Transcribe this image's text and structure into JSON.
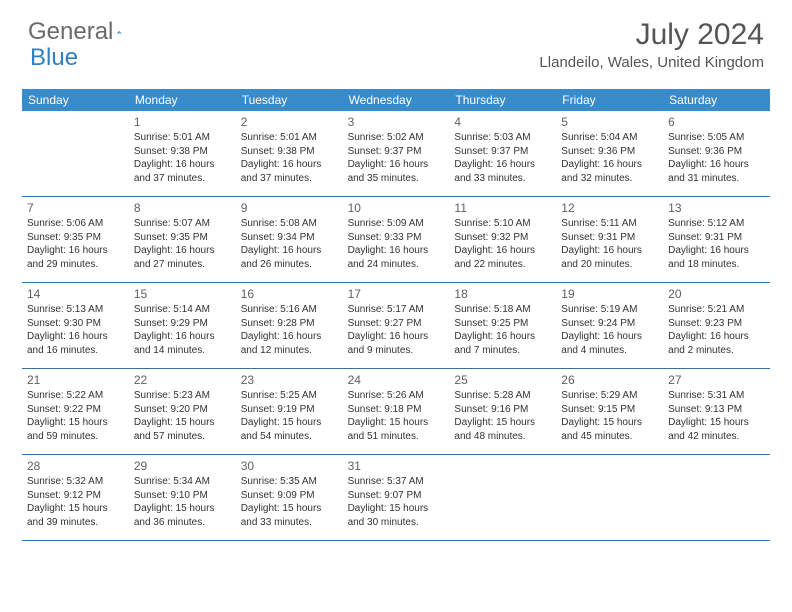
{
  "brand": {
    "part1": "General",
    "part2": "Blue",
    "text_color": "#6a6a6a",
    "accent_color": "#2f7fc1"
  },
  "title": "July 2024",
  "location": "Llandeilo, Wales, United Kingdom",
  "header_bg": "#3a8bc9",
  "header_text": "#ffffff",
  "cell_border": "#3a6fa0",
  "weekdays": [
    "Sunday",
    "Monday",
    "Tuesday",
    "Wednesday",
    "Thursday",
    "Friday",
    "Saturday"
  ],
  "leading_blanks": 1,
  "days": [
    {
      "n": 1,
      "sunrise": "5:01 AM",
      "sunset": "9:38 PM",
      "dh": 16,
      "dm": 37
    },
    {
      "n": 2,
      "sunrise": "5:01 AM",
      "sunset": "9:38 PM",
      "dh": 16,
      "dm": 37
    },
    {
      "n": 3,
      "sunrise": "5:02 AM",
      "sunset": "9:37 PM",
      "dh": 16,
      "dm": 35
    },
    {
      "n": 4,
      "sunrise": "5:03 AM",
      "sunset": "9:37 PM",
      "dh": 16,
      "dm": 33
    },
    {
      "n": 5,
      "sunrise": "5:04 AM",
      "sunset": "9:36 PM",
      "dh": 16,
      "dm": 32
    },
    {
      "n": 6,
      "sunrise": "5:05 AM",
      "sunset": "9:36 PM",
      "dh": 16,
      "dm": 31
    },
    {
      "n": 7,
      "sunrise": "5:06 AM",
      "sunset": "9:35 PM",
      "dh": 16,
      "dm": 29
    },
    {
      "n": 8,
      "sunrise": "5:07 AM",
      "sunset": "9:35 PM",
      "dh": 16,
      "dm": 27
    },
    {
      "n": 9,
      "sunrise": "5:08 AM",
      "sunset": "9:34 PM",
      "dh": 16,
      "dm": 26
    },
    {
      "n": 10,
      "sunrise": "5:09 AM",
      "sunset": "9:33 PM",
      "dh": 16,
      "dm": 24
    },
    {
      "n": 11,
      "sunrise": "5:10 AM",
      "sunset": "9:32 PM",
      "dh": 16,
      "dm": 22
    },
    {
      "n": 12,
      "sunrise": "5:11 AM",
      "sunset": "9:31 PM",
      "dh": 16,
      "dm": 20
    },
    {
      "n": 13,
      "sunrise": "5:12 AM",
      "sunset": "9:31 PM",
      "dh": 16,
      "dm": 18
    },
    {
      "n": 14,
      "sunrise": "5:13 AM",
      "sunset": "9:30 PM",
      "dh": 16,
      "dm": 16
    },
    {
      "n": 15,
      "sunrise": "5:14 AM",
      "sunset": "9:29 PM",
      "dh": 16,
      "dm": 14
    },
    {
      "n": 16,
      "sunrise": "5:16 AM",
      "sunset": "9:28 PM",
      "dh": 16,
      "dm": 12
    },
    {
      "n": 17,
      "sunrise": "5:17 AM",
      "sunset": "9:27 PM",
      "dh": 16,
      "dm": 9
    },
    {
      "n": 18,
      "sunrise": "5:18 AM",
      "sunset": "9:25 PM",
      "dh": 16,
      "dm": 7
    },
    {
      "n": 19,
      "sunrise": "5:19 AM",
      "sunset": "9:24 PM",
      "dh": 16,
      "dm": 4
    },
    {
      "n": 20,
      "sunrise": "5:21 AM",
      "sunset": "9:23 PM",
      "dh": 16,
      "dm": 2
    },
    {
      "n": 21,
      "sunrise": "5:22 AM",
      "sunset": "9:22 PM",
      "dh": 15,
      "dm": 59
    },
    {
      "n": 22,
      "sunrise": "5:23 AM",
      "sunset": "9:20 PM",
      "dh": 15,
      "dm": 57
    },
    {
      "n": 23,
      "sunrise": "5:25 AM",
      "sunset": "9:19 PM",
      "dh": 15,
      "dm": 54
    },
    {
      "n": 24,
      "sunrise": "5:26 AM",
      "sunset": "9:18 PM",
      "dh": 15,
      "dm": 51
    },
    {
      "n": 25,
      "sunrise": "5:28 AM",
      "sunset": "9:16 PM",
      "dh": 15,
      "dm": 48
    },
    {
      "n": 26,
      "sunrise": "5:29 AM",
      "sunset": "9:15 PM",
      "dh": 15,
      "dm": 45
    },
    {
      "n": 27,
      "sunrise": "5:31 AM",
      "sunset": "9:13 PM",
      "dh": 15,
      "dm": 42
    },
    {
      "n": 28,
      "sunrise": "5:32 AM",
      "sunset": "9:12 PM",
      "dh": 15,
      "dm": 39
    },
    {
      "n": 29,
      "sunrise": "5:34 AM",
      "sunset": "9:10 PM",
      "dh": 15,
      "dm": 36
    },
    {
      "n": 30,
      "sunrise": "5:35 AM",
      "sunset": "9:09 PM",
      "dh": 15,
      "dm": 33
    },
    {
      "n": 31,
      "sunrise": "5:37 AM",
      "sunset": "9:07 PM",
      "dh": 15,
      "dm": 30
    }
  ],
  "labels": {
    "sunrise_prefix": "Sunrise: ",
    "sunset_prefix": "Sunset: ",
    "daylight_prefix": "Daylight: ",
    "hours_word": " hours",
    "and_word": "and ",
    "minutes_word": " minutes."
  }
}
